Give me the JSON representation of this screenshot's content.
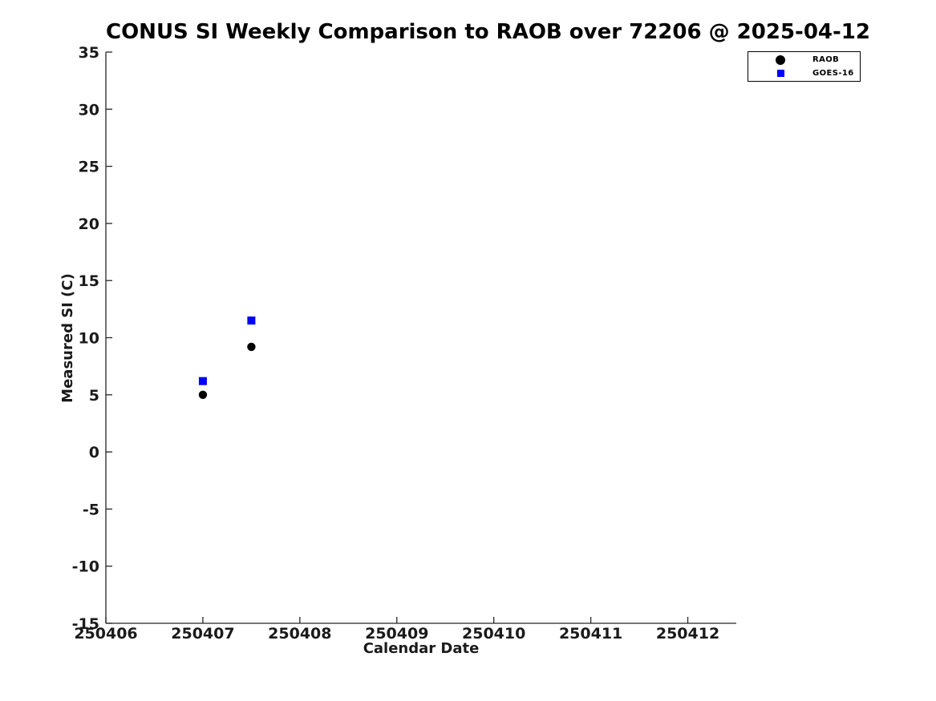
{
  "page": {
    "background": "#ffffff"
  },
  "chart_data": {
    "type": "scatter",
    "title": "CONUS SI Weekly Comparison to RAOB over 72206 @ 2025-04-12",
    "xlabel": "Calendar Date",
    "ylabel": "Measured SI (C)",
    "xlim": [
      250406,
      250412.5
    ],
    "ylim": [
      -15,
      35
    ],
    "xticks": [
      "250406",
      "250407",
      "250408",
      "250409",
      "250410",
      "250411",
      "250412"
    ],
    "yticks": [
      "35",
      "30",
      "25",
      "20",
      "15",
      "10",
      "5",
      "0",
      "-5",
      "-10",
      "-15"
    ],
    "grid": false,
    "legend": {
      "position": "top-right",
      "entries": [
        {
          "label": "RAOB",
          "marker": "circle",
          "color": "#000000"
        },
        {
          "label": "GOES-16",
          "marker": "square",
          "color": "#0000ff"
        }
      ]
    },
    "series": [
      {
        "name": "RAOB",
        "marker": "circle",
        "color": "#000000",
        "points": [
          {
            "x": 250407.0,
            "y": 5.0
          },
          {
            "x": 250407.5,
            "y": 9.2
          }
        ]
      },
      {
        "name": "GOES-16",
        "marker": "square",
        "color": "#0000ff",
        "points": [
          {
            "x": 250407.0,
            "y": 6.2
          },
          {
            "x": 250407.5,
            "y": 11.5
          }
        ]
      }
    ],
    "colors": {
      "axis": "#262626",
      "tick_text": "#1a1a1a",
      "title_text": "#000000"
    }
  }
}
